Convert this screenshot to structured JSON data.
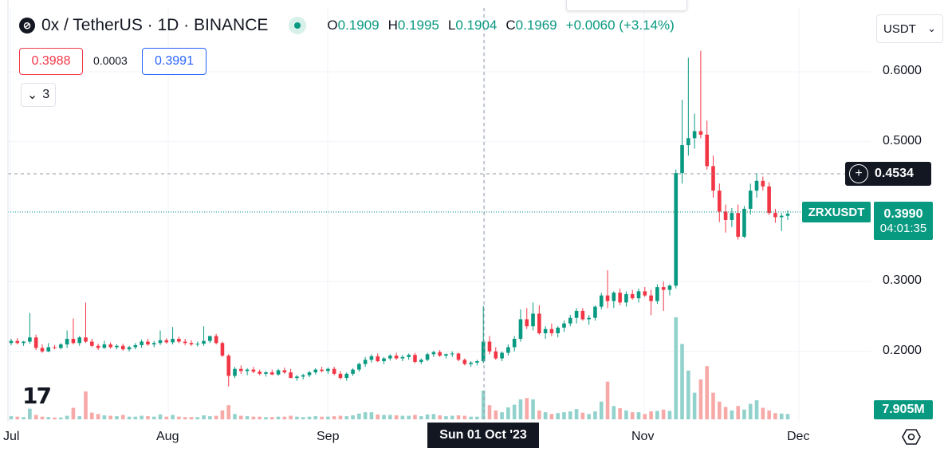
{
  "header": {
    "logo_icon": "0x-logo-icon",
    "title": "0x / TetherUS · 1D · BINANCE",
    "ohlc": {
      "open_label": "O",
      "open": "0.1909",
      "high_label": "H",
      "high": "0.1995",
      "low_label": "L",
      "low": "0.1904",
      "close_label": "C",
      "close": "0.1969",
      "change": "+0.0060 (+3.14%)"
    },
    "bid": "0.3988",
    "spread": "0.0003",
    "ask": "0.3991",
    "collapse_label": "3",
    "currency": "USDT"
  },
  "axis": {
    "price_ticks": [
      "0.6000",
      "0.5000",
      "0.3000",
      "0.2000"
    ],
    "time_ticks": [
      "Jul",
      "Aug",
      "Sep",
      "Nov",
      "Dec"
    ]
  },
  "crosshair": {
    "price": "0.4534",
    "date": "Sun 01 Oct '23"
  },
  "last": {
    "symbol": "ZRXUSDT",
    "price": "0.3990",
    "countdown": "04:01:35"
  },
  "volume_label": "7.905M",
  "colors": {
    "up": "#089981",
    "down": "#f23645",
    "up_vol": "#92d2cc",
    "down_vol": "#f7a9a7",
    "grid": "#f0f3fa"
  },
  "chart_data": {
    "type": "candlestick",
    "ylim": [
      0.1,
      0.65
    ],
    "candles": [
      [
        0.212,
        0.218,
        0.209,
        0.215
      ],
      [
        0.215,
        0.219,
        0.21,
        0.212
      ],
      [
        0.212,
        0.215,
        0.208,
        0.214
      ],
      [
        0.214,
        0.255,
        0.211,
        0.22
      ],
      [
        0.22,
        0.224,
        0.202,
        0.205
      ],
      [
        0.205,
        0.21,
        0.198,
        0.2
      ],
      [
        0.2,
        0.212,
        0.199,
        0.206
      ],
      [
        0.206,
        0.209,
        0.203,
        0.205
      ],
      [
        0.205,
        0.212,
        0.203,
        0.21
      ],
      [
        0.21,
        0.23,
        0.205,
        0.218
      ],
      [
        0.218,
        0.247,
        0.21,
        0.212
      ],
      [
        0.212,
        0.222,
        0.208,
        0.22
      ],
      [
        0.22,
        0.27,
        0.212,
        0.214
      ],
      [
        0.214,
        0.218,
        0.206,
        0.208
      ],
      [
        0.208,
        0.211,
        0.202,
        0.205
      ],
      [
        0.205,
        0.215,
        0.204,
        0.21
      ],
      [
        0.21,
        0.213,
        0.204,
        0.206
      ],
      [
        0.206,
        0.21,
        0.203,
        0.208
      ],
      [
        0.208,
        0.211,
        0.201,
        0.203
      ],
      [
        0.203,
        0.208,
        0.2,
        0.206
      ],
      [
        0.206,
        0.212,
        0.203,
        0.209
      ],
      [
        0.209,
        0.217,
        0.205,
        0.214
      ],
      [
        0.214,
        0.218,
        0.208,
        0.21
      ],
      [
        0.21,
        0.215,
        0.206,
        0.212
      ],
      [
        0.212,
        0.23,
        0.209,
        0.216
      ],
      [
        0.216,
        0.219,
        0.211,
        0.213
      ],
      [
        0.213,
        0.235,
        0.21,
        0.218
      ],
      [
        0.218,
        0.221,
        0.212,
        0.214
      ],
      [
        0.214,
        0.218,
        0.209,
        0.212
      ],
      [
        0.212,
        0.216,
        0.208,
        0.21
      ],
      [
        0.21,
        0.214,
        0.207,
        0.211
      ],
      [
        0.211,
        0.236,
        0.208,
        0.215
      ],
      [
        0.215,
        0.22,
        0.212,
        0.222
      ],
      [
        0.222,
        0.225,
        0.21,
        0.212
      ],
      [
        0.212,
        0.214,
        0.192,
        0.194
      ],
      [
        0.194,
        0.196,
        0.15,
        0.165
      ],
      [
        0.165,
        0.178,
        0.162,
        0.175
      ],
      [
        0.175,
        0.18,
        0.168,
        0.172
      ],
      [
        0.172,
        0.176,
        0.166,
        0.174
      ],
      [
        0.174,
        0.178,
        0.169,
        0.171
      ],
      [
        0.171,
        0.174,
        0.166,
        0.168
      ],
      [
        0.168,
        0.172,
        0.164,
        0.17
      ],
      [
        0.17,
        0.174,
        0.166,
        0.167
      ],
      [
        0.167,
        0.175,
        0.165,
        0.173
      ],
      [
        0.173,
        0.177,
        0.168,
        0.17
      ],
      [
        0.17,
        0.175,
        0.162,
        0.162
      ],
      [
        0.162,
        0.166,
        0.158,
        0.164
      ],
      [
        0.164,
        0.168,
        0.16,
        0.166
      ],
      [
        0.166,
        0.172,
        0.163,
        0.17
      ],
      [
        0.17,
        0.176,
        0.167,
        0.174
      ],
      [
        0.174,
        0.178,
        0.17,
        0.172
      ],
      [
        0.172,
        0.177,
        0.168,
        0.175
      ],
      [
        0.175,
        0.178,
        0.166,
        0.168
      ],
      [
        0.168,
        0.172,
        0.16,
        0.162
      ],
      [
        0.162,
        0.17,
        0.158,
        0.168
      ],
      [
        0.168,
        0.176,
        0.165,
        0.174
      ],
      [
        0.174,
        0.184,
        0.171,
        0.182
      ],
      [
        0.182,
        0.192,
        0.178,
        0.188
      ],
      [
        0.188,
        0.196,
        0.184,
        0.193
      ],
      [
        0.193,
        0.197,
        0.185,
        0.186
      ],
      [
        0.186,
        0.192,
        0.182,
        0.19
      ],
      [
        0.19,
        0.196,
        0.187,
        0.194
      ],
      [
        0.194,
        0.198,
        0.188,
        0.19
      ],
      [
        0.19,
        0.195,
        0.186,
        0.192
      ],
      [
        0.192,
        0.197,
        0.188,
        0.195
      ],
      [
        0.195,
        0.198,
        0.183,
        0.185
      ],
      [
        0.185,
        0.19,
        0.182,
        0.188
      ],
      [
        0.188,
        0.198,
        0.186,
        0.196
      ],
      [
        0.196,
        0.201,
        0.192,
        0.199
      ],
      [
        0.199,
        0.202,
        0.192,
        0.194
      ],
      [
        0.194,
        0.197,
        0.19,
        0.196
      ],
      [
        0.196,
        0.2,
        0.192,
        0.197
      ],
      [
        0.197,
        0.198,
        0.186,
        0.188
      ],
      [
        0.188,
        0.19,
        0.18,
        0.182
      ],
      [
        0.182,
        0.186,
        0.178,
        0.184
      ],
      [
        0.184,
        0.188,
        0.18,
        0.186
      ],
      [
        0.186,
        0.265,
        0.183,
        0.214
      ],
      [
        0.214,
        0.222,
        0.196,
        0.2
      ],
      [
        0.2,
        0.206,
        0.188,
        0.19
      ],
      [
        0.19,
        0.2,
        0.186,
        0.198
      ],
      [
        0.198,
        0.21,
        0.194,
        0.206
      ],
      [
        0.206,
        0.222,
        0.2,
        0.218
      ],
      [
        0.218,
        0.26,
        0.214,
        0.246
      ],
      [
        0.246,
        0.262,
        0.232,
        0.236
      ],
      [
        0.236,
        0.27,
        0.23,
        0.254
      ],
      [
        0.254,
        0.266,
        0.224,
        0.226
      ],
      [
        0.226,
        0.236,
        0.218,
        0.232
      ],
      [
        0.232,
        0.24,
        0.222,
        0.226
      ],
      [
        0.226,
        0.236,
        0.22,
        0.234
      ],
      [
        0.234,
        0.244,
        0.228,
        0.24
      ],
      [
        0.24,
        0.252,
        0.236,
        0.248
      ],
      [
        0.248,
        0.262,
        0.24,
        0.258
      ],
      [
        0.258,
        0.262,
        0.244,
        0.246
      ],
      [
        0.246,
        0.252,
        0.238,
        0.248
      ],
      [
        0.248,
        0.266,
        0.244,
        0.264
      ],
      [
        0.264,
        0.284,
        0.26,
        0.28
      ],
      [
        0.28,
        0.316,
        0.262,
        0.272
      ],
      [
        0.272,
        0.286,
        0.262,
        0.284
      ],
      [
        0.284,
        0.29,
        0.266,
        0.27
      ],
      [
        0.27,
        0.286,
        0.264,
        0.282
      ],
      [
        0.282,
        0.288,
        0.274,
        0.276
      ],
      [
        0.276,
        0.29,
        0.27,
        0.286
      ],
      [
        0.286,
        0.292,
        0.278,
        0.28
      ],
      [
        0.28,
        0.288,
        0.252,
        0.272
      ],
      [
        0.272,
        0.296,
        0.268,
        0.292
      ],
      [
        0.292,
        0.3,
        0.258,
        0.288
      ],
      [
        0.288,
        0.296,
        0.28,
        0.294
      ],
      [
        0.294,
        0.46,
        0.29,
        0.455
      ],
      [
        0.455,
        0.56,
        0.44,
        0.495
      ],
      [
        0.495,
        0.62,
        0.48,
        0.505
      ],
      [
        0.505,
        0.54,
        0.49,
        0.515
      ],
      [
        0.515,
        0.63,
        0.505,
        0.51
      ],
      [
        0.51,
        0.53,
        0.46,
        0.465
      ],
      [
        0.465,
        0.48,
        0.42,
        0.43
      ],
      [
        0.43,
        0.44,
        0.385,
        0.4
      ],
      [
        0.4,
        0.41,
        0.37,
        0.388
      ],
      [
        0.388,
        0.405,
        0.378,
        0.398
      ],
      [
        0.398,
        0.41,
        0.36,
        0.364
      ],
      [
        0.364,
        0.408,
        0.362,
        0.404
      ],
      [
        0.404,
        0.44,
        0.396,
        0.43
      ],
      [
        0.43,
        0.455,
        0.42,
        0.444
      ],
      [
        0.444,
        0.45,
        0.43,
        0.436
      ],
      [
        0.436,
        0.442,
        0.395,
        0.398
      ],
      [
        0.398,
        0.404,
        0.384,
        0.392
      ],
      [
        0.392,
        0.398,
        0.372,
        0.394
      ],
      [
        0.394,
        0.402,
        0.388,
        0.397
      ]
    ],
    "volumes": [
      0.7,
      0.6,
      0.5,
      2.4,
      1.0,
      0.6,
      0.5,
      0.4,
      0.4,
      0.8,
      2.6,
      0.7,
      6.3,
      1.5,
      1.2,
      0.9,
      0.8,
      0.7,
      1.0,
      0.6,
      0.6,
      0.8,
      0.7,
      0.6,
      1.1,
      0.6,
      1.0,
      0.6,
      0.5,
      0.5,
      0.5,
      0.9,
      0.7,
      0.8,
      2.0,
      3.2,
      1.2,
      0.8,
      0.7,
      0.6,
      0.6,
      0.5,
      0.5,
      0.6,
      0.6,
      0.8,
      0.6,
      0.5,
      0.6,
      0.7,
      0.6,
      0.6,
      0.7,
      0.8,
      0.7,
      0.9,
      1.3,
      1.6,
      1.6,
      1.1,
      1.0,
      1.0,
      0.9,
      0.8,
      0.8,
      1.0,
      0.7,
      1.1,
      1.2,
      0.9,
      0.7,
      0.8,
      0.9,
      0.8,
      0.6,
      0.6,
      6.5,
      3.2,
      2.0,
      1.6,
      2.7,
      3.3,
      4.5,
      4.8,
      4.5,
      2.0,
      1.6,
      1.2,
      1.4,
      1.6,
      1.8,
      2.3,
      1.5,
      1.2,
      1.8,
      4.0,
      8.5,
      3.0,
      2.5,
      2.0,
      1.6,
      1.6,
      1.2,
      1.8,
      1.9,
      2.2,
      1.9,
      23,
      17,
      11,
      6,
      9,
      12,
      6,
      4,
      2.8,
      2,
      3,
      2.2,
      3.5,
      4.3,
      2.6,
      2,
      1.4,
      1.3,
      1.2
    ]
  }
}
